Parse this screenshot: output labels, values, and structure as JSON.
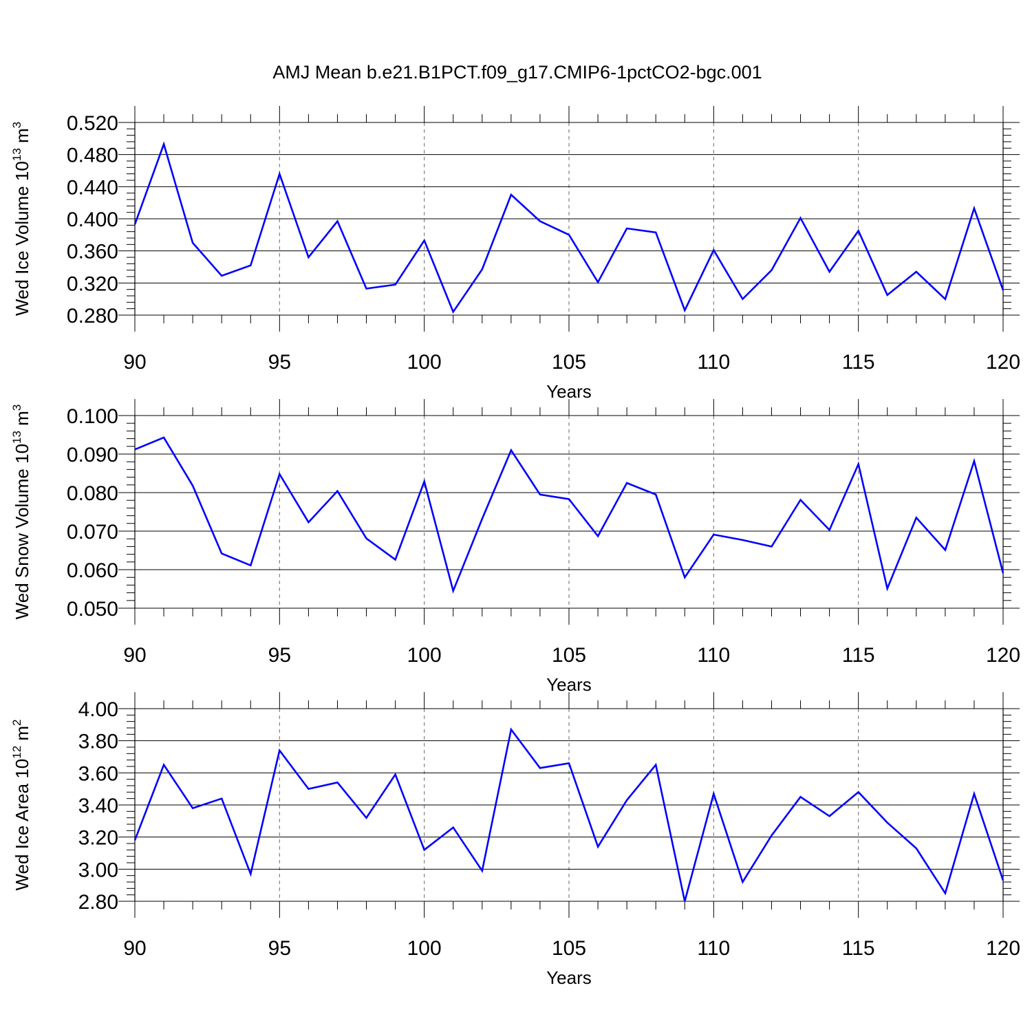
{
  "title": "AMJ Mean b.e21.B1PCT.f09_g17.CMIP6-1pctCO2-bgc.001",
  "colors": {
    "line": "#0000ff",
    "axis": "#000000",
    "grid": "#808080"
  },
  "chart_data": [
    {
      "type": "line",
      "xlabel": "Years",
      "ylabel": {
        "base": "Wed Ice Volume 10",
        "exp": "13",
        "unit": " m",
        "unit_exp": "3"
      },
      "xlim": [
        90,
        120
      ],
      "ylim": [
        0.28,
        0.52
      ],
      "xticks": [
        "90",
        "95",
        "100",
        "105",
        "110",
        "115",
        "120"
      ],
      "yticks": [
        "0.280",
        "0.320",
        "0.360",
        "0.400",
        "0.440",
        "0.480",
        "0.520"
      ],
      "x": [
        90,
        91,
        92,
        93,
        94,
        95,
        96,
        97,
        98,
        99,
        100,
        101,
        102,
        103,
        104,
        105,
        106,
        107,
        108,
        109,
        110,
        111,
        112,
        113,
        114,
        115,
        116,
        117,
        118,
        119,
        120
      ],
      "values": [
        0.393,
        0.493,
        0.37,
        0.329,
        0.342,
        0.456,
        0.352,
        0.397,
        0.313,
        0.318,
        0.373,
        0.284,
        0.337,
        0.43,
        0.397,
        0.38,
        0.321,
        0.388,
        0.383,
        0.286,
        0.361,
        0.3,
        0.336,
        0.401,
        0.334,
        0.385,
        0.305,
        0.334,
        0.3,
        0.413,
        0.311
      ]
    },
    {
      "type": "line",
      "xlabel": "Years",
      "ylabel": {
        "base": "Wed Snow Volume 10",
        "exp": "13",
        "unit": " m",
        "unit_exp": "3"
      },
      "xlim": [
        90,
        120
      ],
      "ylim": [
        0.05,
        0.1
      ],
      "xticks": [
        "90",
        "95",
        "100",
        "105",
        "110",
        "115",
        "120"
      ],
      "yticks": [
        "0.050",
        "0.060",
        "0.070",
        "0.080",
        "0.090",
        "0.100"
      ],
      "x": [
        90,
        91,
        92,
        93,
        94,
        95,
        96,
        97,
        98,
        99,
        100,
        101,
        102,
        103,
        104,
        105,
        106,
        107,
        108,
        109,
        110,
        111,
        112,
        113,
        114,
        115,
        116,
        117,
        118,
        119,
        120
      ],
      "values": [
        0.0912,
        0.0943,
        0.0818,
        0.0642,
        0.0611,
        0.0848,
        0.0723,
        0.0804,
        0.0681,
        0.0626,
        0.0829,
        0.0545,
        0.0732,
        0.091,
        0.0795,
        0.0783,
        0.0687,
        0.0825,
        0.0795,
        0.058,
        0.0691,
        0.0677,
        0.066,
        0.0781,
        0.0703,
        0.0874,
        0.0551,
        0.0735,
        0.0651,
        0.0882,
        0.0591
      ]
    },
    {
      "type": "line",
      "xlabel": "Years",
      "ylabel": {
        "base": "Wed Ice Area 10",
        "exp": "12",
        "unit": " m",
        "unit_exp": "2"
      },
      "xlim": [
        90,
        120
      ],
      "ylim": [
        2.8,
        4.0
      ],
      "xticks": [
        "90",
        "95",
        "100",
        "105",
        "110",
        "115",
        "120"
      ],
      "yticks": [
        "2.80",
        "3.00",
        "3.20",
        "3.40",
        "3.60",
        "3.80",
        "4.00"
      ],
      "x": [
        90,
        91,
        92,
        93,
        94,
        95,
        96,
        97,
        98,
        99,
        100,
        101,
        102,
        103,
        104,
        105,
        106,
        107,
        108,
        109,
        110,
        111,
        112,
        113,
        114,
        115,
        116,
        117,
        118,
        119,
        120
      ],
      "values": [
        3.18,
        3.65,
        3.38,
        3.44,
        2.97,
        3.74,
        3.5,
        3.54,
        3.32,
        3.59,
        3.12,
        3.26,
        2.99,
        3.87,
        3.63,
        3.66,
        3.14,
        3.43,
        3.65,
        2.8,
        3.47,
        2.92,
        3.21,
        3.45,
        3.33,
        3.48,
        3.29,
        3.13,
        2.85,
        3.47,
        2.93
      ]
    }
  ]
}
